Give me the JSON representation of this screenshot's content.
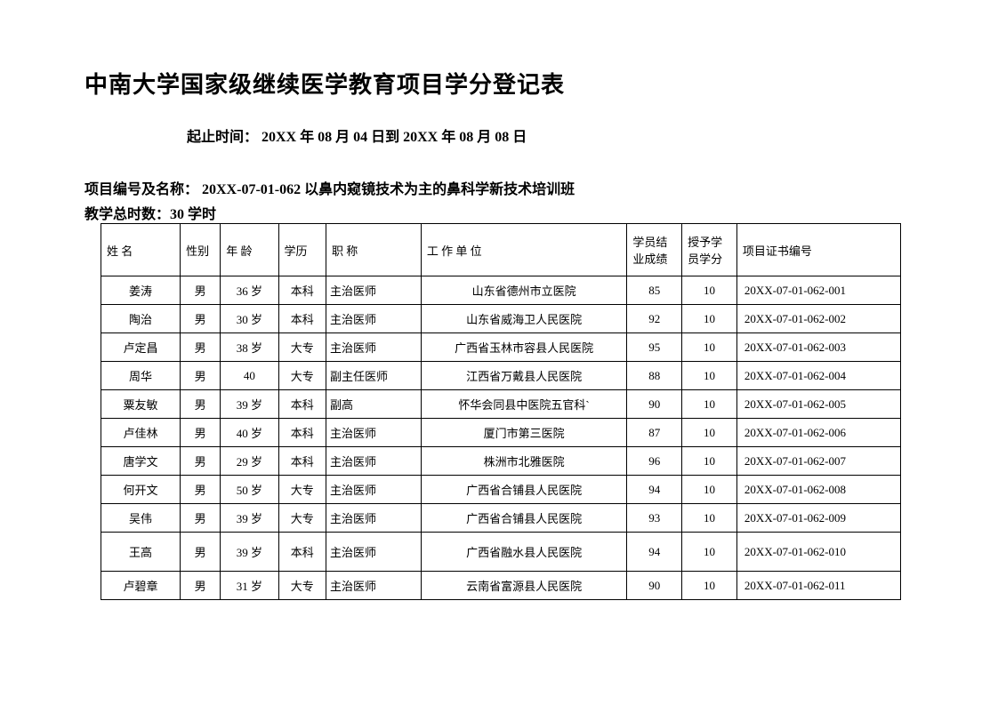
{
  "title": "中南大学国家级继续医学教育项目学分登记表",
  "date_line": "起止时间：  20XX 年 08 月 04 日到   20XX 年 08 月 08 日",
  "project_line": "项目编号及名称：   20XX-07-01-062   以鼻内窥镜技术为主的鼻科学新技术培训班",
  "hours_line": "教学总时数：30 学时",
  "headers": {
    "name": "姓 名",
    "gender": "性别",
    "age": "年 龄",
    "edu": "学历",
    "title": "职   称",
    "unit": "工   作   单   位",
    "score": "学员结业成绩",
    "credit": "授予学员学分",
    "cert": "项目证书编号"
  },
  "rows": [
    {
      "name": "姜涛",
      "gender": "男",
      "age": "36 岁",
      "edu": "本科",
      "title": "主治医师",
      "unit": "山东省德州市立医院",
      "score": "85",
      "credit": "10",
      "cert": "20XX-07-01-062-001"
    },
    {
      "name": "陶治",
      "gender": "男",
      "age": "30 岁",
      "edu": "本科",
      "title": "主治医师",
      "unit": "山东省威海卫人民医院",
      "score": "92",
      "credit": "10",
      "cert": "20XX-07-01-062-002"
    },
    {
      "name": "卢定昌",
      "gender": "男",
      "age": "38 岁",
      "edu": "大专",
      "title": "主治医师",
      "unit": "广西省玉林市容县人民医院",
      "score": "95",
      "credit": "10",
      "cert": "20XX-07-01-062-003"
    },
    {
      "name": "周华",
      "gender": "男",
      "age": "40",
      "edu": "大专",
      "title": "副主任医师",
      "unit": "江西省万戴县人民医院",
      "score": "88",
      "credit": "10",
      "cert": "20XX-07-01-062-004"
    },
    {
      "name": "粟友敏",
      "gender": "男",
      "age": "39 岁",
      "edu": "本科",
      "title": "副高",
      "unit": "怀华会同县中医院五官科`",
      "score": "90",
      "credit": "10",
      "cert": "20XX-07-01-062-005"
    },
    {
      "name": "卢佳林",
      "gender": "男",
      "age": "40 岁",
      "edu": "本科",
      "title": "主治医师",
      "unit": "厦门市第三医院",
      "score": "87",
      "credit": "10",
      "cert": "20XX-07-01-062-006"
    },
    {
      "name": "唐学文",
      "gender": "男",
      "age": "29 岁",
      "edu": "本科",
      "title": "主治医师",
      "unit": "株洲市北雅医院",
      "score": "96",
      "credit": "10",
      "cert": "20XX-07-01-062-007"
    },
    {
      "name": "何开文",
      "gender": "男",
      "age": "50 岁",
      "edu": "大专",
      "title": "主治医师",
      "unit": "广西省合铺县人民医院",
      "score": "94",
      "credit": "10",
      "cert": "20XX-07-01-062-008"
    },
    {
      "name": "吴伟",
      "gender": "男",
      "age": "39 岁",
      "edu": "大专",
      "title": "主治医师",
      "unit": "广西省合铺县人民医院",
      "score": "93",
      "credit": "10",
      "cert": "20XX-07-01-062-009"
    },
    {
      "name": "王高",
      "gender": "男",
      "age": "39 岁",
      "edu": "本科",
      "title": "主治医师",
      "unit": "广西省融水县人民医院",
      "score": "94",
      "credit": "10",
      "cert": "20XX-07-01-062-010"
    },
    {
      "name": "卢碧章",
      "gender": "男",
      "age": "31 岁",
      "edu": "大专",
      "title": "主治医师",
      "unit": "云南省富源县人民医院",
      "score": "90",
      "credit": "10",
      "cert": "20XX-07-01-062-011"
    }
  ],
  "tall_rows": [
    9
  ]
}
